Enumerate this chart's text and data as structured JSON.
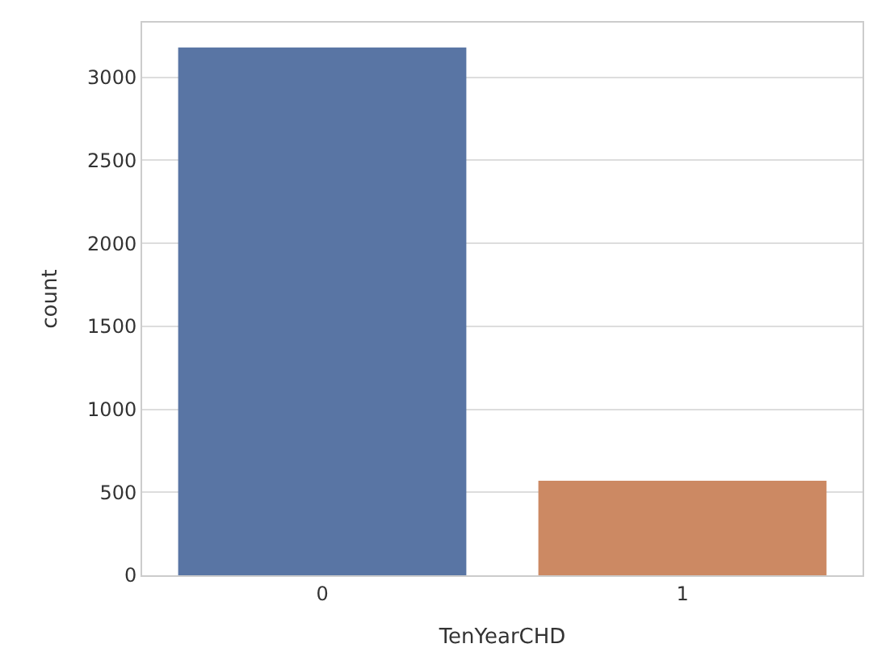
{
  "chart_data": {
    "type": "bar",
    "xlabel": "TenYearCHD",
    "ylabel": "count",
    "categories": [
      "0",
      "1"
    ],
    "values": [
      3180,
      570
    ],
    "colors": [
      "#5975a4",
      "#cc8963"
    ],
    "ylim": [
      0,
      3330
    ],
    "yticks": [
      0,
      500,
      1000,
      1500,
      2000,
      2500,
      3000
    ],
    "grid": "y"
  }
}
